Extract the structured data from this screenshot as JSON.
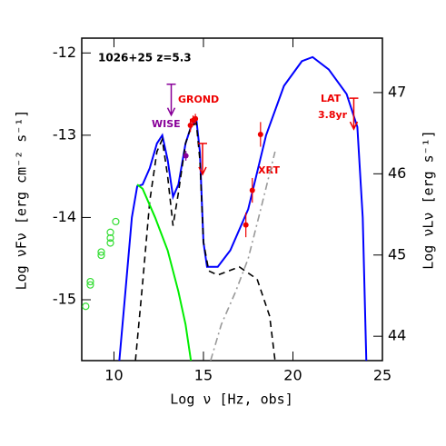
{
  "chart_data": {
    "type": "line",
    "x_label": "Log ν  [Hz, obs]",
    "y_label": "Log νFν [erg cm⁻² s⁻¹]",
    "y2_label": "Log νLν [erg s⁻¹]",
    "annotations": [
      "1026+25 z=5.3",
      "GROND",
      "WISE",
      "XRT",
      "LAT",
      "3.8yr"
    ],
    "xlim": [
      8.2,
      25
    ],
    "ylim": [
      -15.74,
      -11.82
    ],
    "y2lim": [
      43.7,
      47.67
    ],
    "xticks": [
      10,
      15,
      20,
      25
    ],
    "yticks": [
      -12,
      -13,
      -14,
      -15
    ],
    "y2ticks": [
      44,
      45,
      46,
      47
    ],
    "series": [
      {
        "style": "solid",
        "color": "#0000ff",
        "x": [
          10.3,
          10.6,
          11.0,
          11.3,
          11.6,
          12.0,
          12.4,
          12.7,
          13.0,
          13.3,
          13.6,
          14.0,
          14.3,
          14.6,
          14.8,
          15.0,
          15.2,
          15.8,
          16.5,
          17.5,
          18.5,
          19.5,
          20.5,
          21.1,
          22.0,
          23.0,
          23.6,
          23.9,
          24.1
        ],
        "values": [
          -15.74,
          -15.0,
          -14.0,
          -13.62,
          -13.6,
          -13.4,
          -13.1,
          -13.0,
          -13.3,
          -13.75,
          -13.6,
          -13.1,
          -12.9,
          -12.8,
          -13.2,
          -14.3,
          -14.6,
          -14.6,
          -14.4,
          -13.9,
          -13.0,
          -12.4,
          -12.1,
          -12.05,
          -12.2,
          -12.5,
          -12.9,
          -14.0,
          -15.74
        ]
      },
      {
        "style": "dashed",
        "color": "#000000",
        "x": [
          11.2,
          11.6,
          12.0,
          12.4,
          12.7,
          13.0,
          13.3,
          13.6,
          14.0,
          14.3,
          14.6,
          14.8,
          15.0,
          15.3,
          15.8,
          17.0,
          18.0,
          18.7,
          19.0
        ],
        "values": [
          -15.74,
          -14.8,
          -13.8,
          -13.2,
          -13.05,
          -13.5,
          -14.1,
          -13.7,
          -13.1,
          -12.9,
          -12.85,
          -13.3,
          -14.3,
          -14.65,
          -14.7,
          -14.6,
          -14.75,
          -15.2,
          -15.74
        ]
      },
      {
        "style": "solid",
        "color": "#00ee00",
        "x": [
          11.3,
          11.6,
          12.3,
          13.0,
          13.6,
          14.0,
          14.3
        ],
        "values": [
          -13.6,
          -13.65,
          -14.0,
          -14.4,
          -14.9,
          -15.3,
          -15.74
        ]
      },
      {
        "style": "dashdot",
        "color": "#999999",
        "x": [
          15.4,
          16.0,
          16.8,
          17.5,
          18.2,
          19.0
        ],
        "values": [
          -15.74,
          -15.3,
          -14.9,
          -14.5,
          -13.9,
          -13.2
        ]
      },
      {
        "style": "open-circles",
        "color": "#33dd33",
        "x": [
          8.42,
          8.68,
          8.68,
          9.29,
          9.29,
          9.8,
          9.8,
          9.8,
          10.1
        ],
        "values": [
          -15.08,
          -14.82,
          -14.78,
          -14.46,
          -14.42,
          -14.31,
          -14.25,
          -14.18,
          -14.05
        ]
      },
      {
        "style": "points",
        "color": "#ee0000",
        "x": [
          14.27,
          14.42,
          14.55,
          17.37,
          17.73,
          18.19
        ],
        "values": [
          -12.88,
          -12.82,
          -12.8,
          -14.09,
          -13.67,
          -12.99
        ],
        "errors": [
          0.08,
          0.06,
          0.06,
          0.15,
          0.15,
          0.15
        ]
      },
      {
        "style": "upper-limits",
        "color": "#ee0000",
        "x": [
          14.95,
          23.4
        ],
        "values": [
          -13.1,
          -12.55
        ]
      },
      {
        "style": "points",
        "color": "#880099",
        "x": [
          14.02
        ],
        "values": [
          -13.25
        ],
        "errors": [
          0.06
        ]
      },
      {
        "style": "upper-limits",
        "color": "#880099",
        "x": [
          13.2
        ],
        "values": [
          -12.38
        ]
      }
    ]
  }
}
